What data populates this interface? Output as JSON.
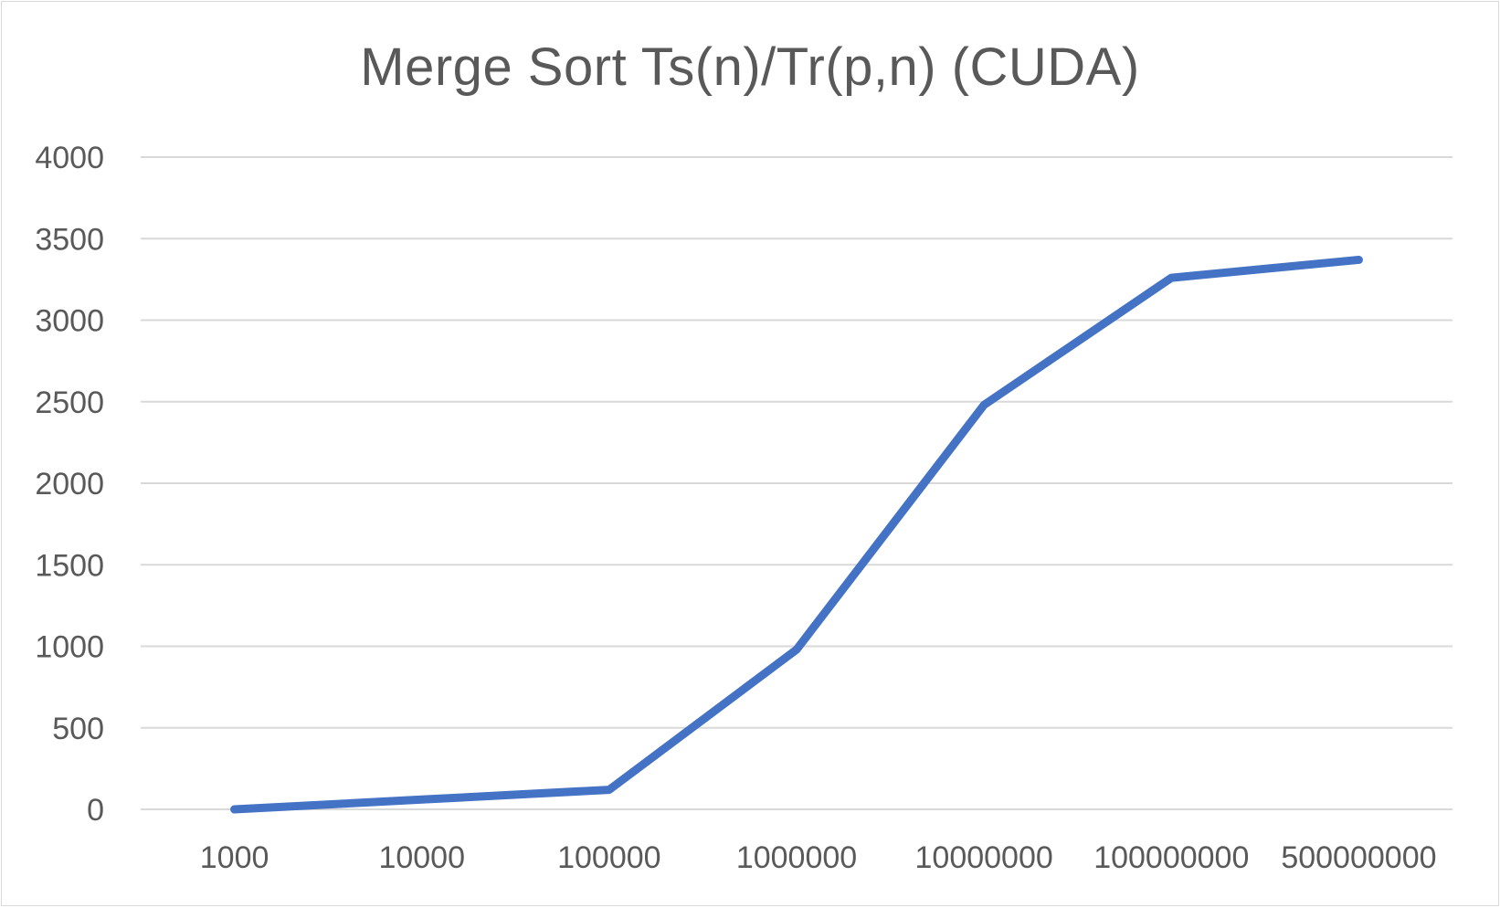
{
  "chart_data": {
    "type": "line",
    "title": "Merge Sort Ts(n)/Tr(p,n) (CUDA)",
    "xlabel": "",
    "ylabel": "",
    "categories": [
      "1000",
      "10000",
      "100000",
      "1000000",
      "10000000",
      "100000000",
      "500000000"
    ],
    "series": [
      {
        "values": [
          0,
          60,
          120,
          980,
          2480,
          3260,
          3370
        ],
        "color": "#4472C4"
      }
    ],
    "ylim": [
      0,
      4000
    ],
    "yticks": [
      "0",
      "500",
      "1000",
      "1500",
      "2000",
      "2500",
      "3000",
      "3500",
      "4000"
    ],
    "grid": true,
    "legend": "none",
    "colors": {
      "gridline": "#d9d9d9",
      "text": "#595959",
      "line": "#4472C4"
    }
  }
}
